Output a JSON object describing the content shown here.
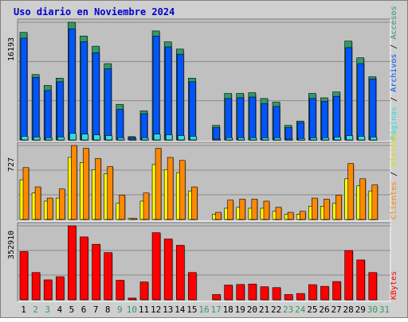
{
  "chart_data": {
    "type": "bar",
    "title": "Uso diario en Noviembre 2024",
    "categories": [
      "1",
      "2",
      "3",
      "4",
      "5",
      "6",
      "7",
      "8",
      "9",
      "10",
      "11",
      "12",
      "13",
      "14",
      "15",
      "16",
      "17",
      "18",
      "19",
      "20",
      "21",
      "22",
      "23",
      "24",
      "25",
      "26",
      "27",
      "28",
      "29",
      "30",
      "31"
    ],
    "weekend_days": [
      "2",
      "3",
      "9",
      "10",
      "16",
      "17",
      "23",
      "24",
      "30",
      "31"
    ],
    "panels": [
      {
        "id": "hits",
        "max_label": "16193",
        "ylim": [
          0,
          16193
        ],
        "series": [
          {
            "name": "Accesos",
            "color": "#339966",
            "values": [
              14800,
              9000,
              7500,
              8500,
              16193,
              14300,
              12900,
              10500,
              4900,
              450,
              4000,
              15000,
              13500,
              12500,
              8500,
              0,
              2000,
              6400,
              6400,
              6500,
              5700,
              5200,
              2000,
              2600,
              6400,
              5800,
              6600,
              13600,
              11300,
              8700,
              0
            ]
          },
          {
            "name": "Archivos",
            "color": "#0055ff",
            "values": [
              14000,
              8600,
              6800,
              8000,
              15300,
              13500,
              12000,
              9800,
              4200,
              350,
              3600,
              14300,
              12800,
              11800,
              8000,
              0,
              1700,
              5700,
              5800,
              5900,
              5000,
              4600,
              1700,
              2400,
              5700,
              5300,
              6000,
              12700,
              10500,
              8400,
              0
            ]
          },
          {
            "name": "Páginas",
            "color": "#33dddd",
            "values": [
              500,
              400,
              300,
              400,
              900,
              800,
              700,
              600,
              300,
              100,
              300,
              800,
              700,
              600,
              500,
              0,
              100,
              300,
              300,
              300,
              300,
              300,
              100,
              200,
              300,
              300,
              400,
              600,
              500,
              400,
              0
            ]
          }
        ],
        "legend_colors": [
          "#339966",
          "#0055ff",
          "#33dddd"
        ]
      },
      {
        "id": "visits",
        "max_label": "727",
        "ylim": [
          0,
          727
        ],
        "series": [
          {
            "name": "Visitas",
            "color": "#ffff00",
            "values": [
              390,
              260,
              180,
              210,
              610,
              560,
              490,
              450,
              160,
              10,
              180,
              540,
              490,
              460,
              280,
              0,
              50,
              110,
              120,
              110,
              110,
              80,
              50,
              50,
              130,
              130,
              160,
              400,
              330,
              280,
              0
            ]
          },
          {
            "name": "Clientes",
            "color": "#ff8800",
            "values": [
              510,
              320,
              210,
              300,
              727,
              700,
              600,
              520,
              240,
              10,
              260,
              700,
              610,
              580,
              320,
              0,
              70,
              190,
              200,
              200,
              180,
              120,
              70,
              80,
              210,
              200,
              240,
              550,
              400,
              340,
              0
            ]
          }
        ],
        "legend_colors": [
          "#ffff00",
          "#ff8800"
        ]
      },
      {
        "id": "bytes",
        "max_label": "352910",
        "ylim": [
          0,
          352910
        ],
        "series": [
          {
            "name": "KBytes",
            "color": "#ff0000",
            "values": [
              230000,
              130000,
              95000,
              110000,
              352910,
              300000,
              265000,
              225000,
              93000,
              8000,
              85000,
              320000,
              290000,
              260000,
              130000,
              0,
              25000,
              70000,
              73000,
              75000,
              62000,
              58000,
              25000,
              30000,
              72000,
              64000,
              87000,
              235000,
              190000,
              130000,
              0
            ]
          }
        ],
        "legend_colors": [
          "#ff0000"
        ]
      }
    ],
    "legend_order": [
      "Accesos",
      "Archivos",
      "Páginas",
      "Visitas",
      "Clientes",
      "KBytes"
    ],
    "legend_separator": "/",
    "grid": true,
    "legend_placement": "right"
  }
}
